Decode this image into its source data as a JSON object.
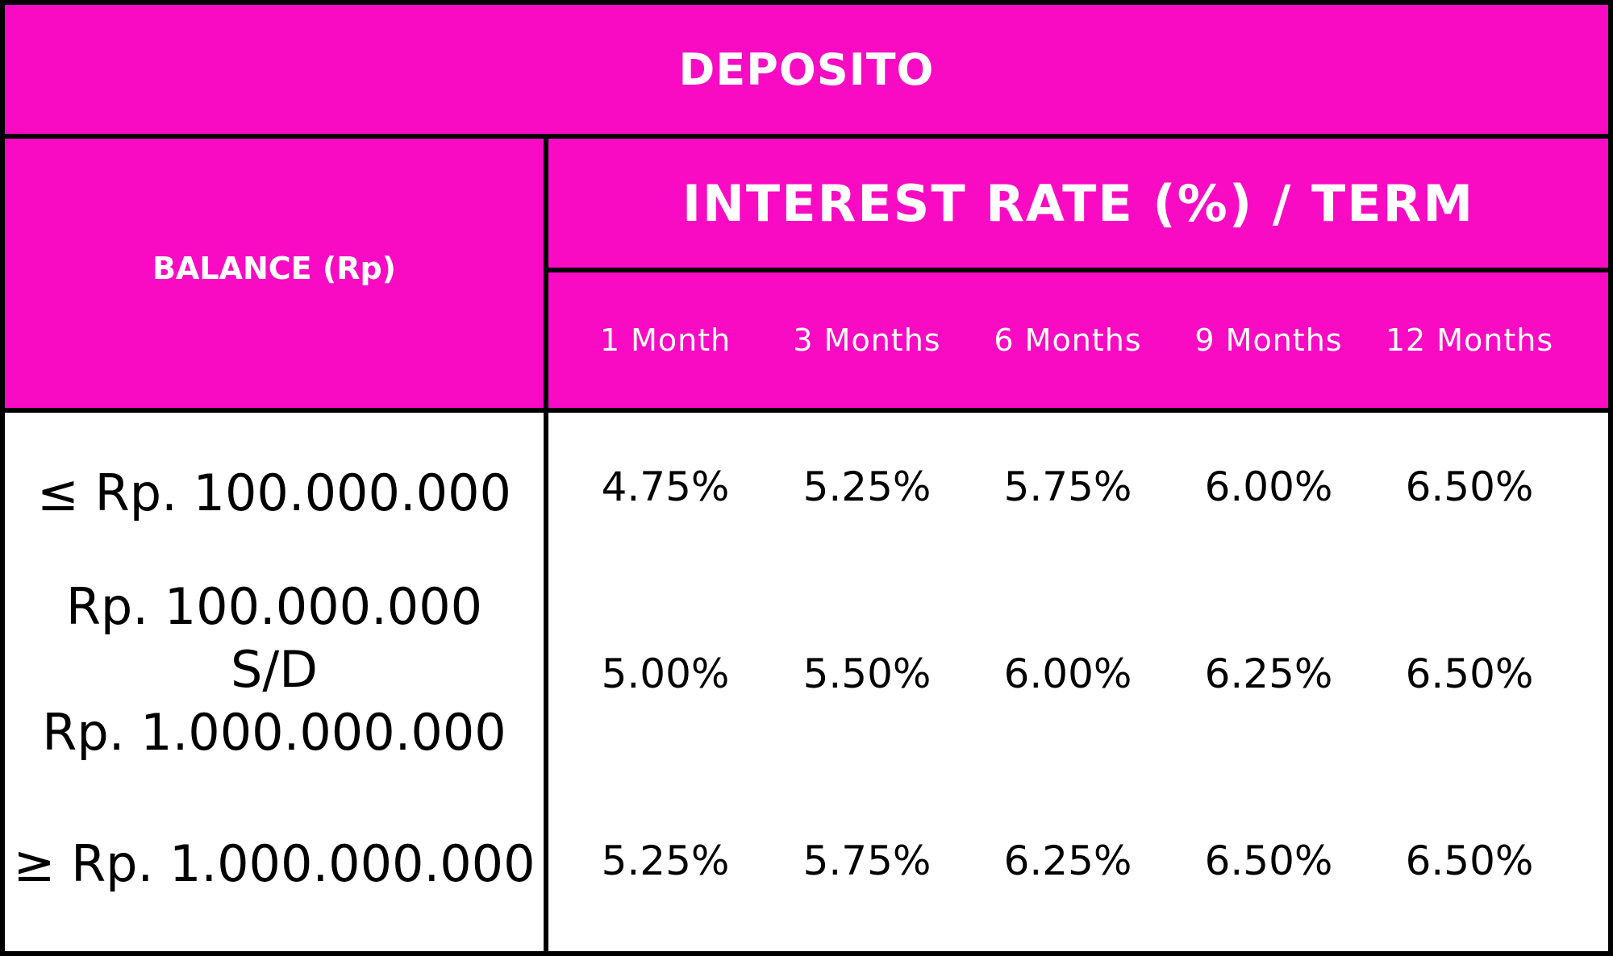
{
  "title": "DEPOSITO",
  "header": {
    "balance_label": "BALANCE (Rp)",
    "rate_label": "INTEREST RATE (%) / TERM",
    "terms": [
      "1 Month",
      "3 Months",
      "6 Months",
      "9 Months",
      "12 Months"
    ]
  },
  "rows": [
    {
      "balance": [
        "≤ Rp. 100.000.000"
      ],
      "rates": [
        "4.75%",
        "5.25%",
        "5.75%",
        "6.00%",
        "6.50%"
      ]
    },
    {
      "balance": [
        "Rp. 100.000.000",
        "S/D",
        "Rp. 1.000.000.000"
      ],
      "rates": [
        "5.00%",
        "5.50%",
        "6.00%",
        "6.25%",
        "6.50%"
      ]
    },
    {
      "balance": [
        "≥ Rp. 1.000.000.000"
      ],
      "rates": [
        "5.25%",
        "5.75%",
        "6.25%",
        "6.50%",
        "6.50%"
      ]
    }
  ],
  "colors": {
    "header_bg": "#f90bc4",
    "header_text": "#ffffff",
    "border": "#000000"
  }
}
